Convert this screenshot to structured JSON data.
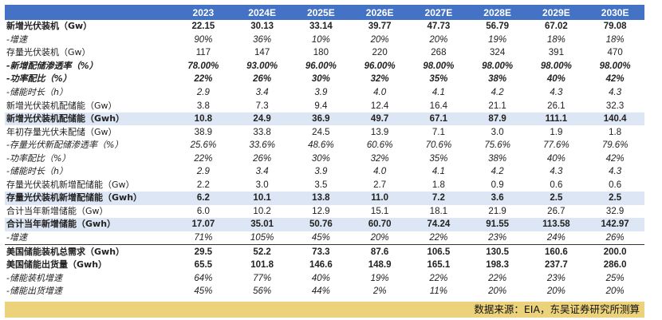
{
  "table": {
    "years": [
      "2023",
      "2024E",
      "2025E",
      "2026E",
      "2027E",
      "2028E",
      "2029E",
      "2030E"
    ],
    "rows": [
      {
        "label": "新增光伏装机（Gw）",
        "values": [
          "22.15",
          "30.13",
          "33.14",
          "39.77",
          "47.73",
          "56.79",
          "67.02",
          "79.08"
        ],
        "style": "bold"
      },
      {
        "label": "-增速",
        "values": [
          "90%",
          "36%",
          "10%",
          "20%",
          "20%",
          "19%",
          "18%",
          "18%"
        ],
        "style": "italic"
      },
      {
        "label": "存量光伏装机（Gw）",
        "values": [
          "117",
          "147",
          "180",
          "220",
          "268",
          "324",
          "391",
          "470"
        ],
        "style": "normal"
      },
      {
        "label": "-新增配储渗透率（%）",
        "values": [
          "78.00%",
          "93.00%",
          "96.00%",
          "96.00%",
          "98.00%",
          "98.00%",
          "98.00%",
          "98.00%"
        ],
        "style": "bold-italic"
      },
      {
        "label": "-功率配比（%）",
        "values": [
          "22%",
          "26%",
          "30%",
          "32%",
          "35%",
          "38%",
          "40%",
          "42%"
        ],
        "style": "bold-italic"
      },
      {
        "label": "-储能时长（h）",
        "values": [
          "2.9",
          "3.4",
          "3.9",
          "4.0",
          "4.1",
          "4.2",
          "4.3",
          "4.3"
        ],
        "style": "italic"
      },
      {
        "label": "新增光伏装机配储能（Gw）",
        "values": [
          "3.8",
          "7.3",
          "9.4",
          "12.4",
          "16.4",
          "21.1",
          "26.1",
          "32.3"
        ],
        "style": "normal"
      },
      {
        "label": "新增光伏装机配储能（Gwh）",
        "values": [
          "10.8",
          "24.9",
          "36.9",
          "49.7",
          "67.1",
          "87.9",
          "111.1",
          "140.4"
        ],
        "style": "bold-band"
      },
      {
        "label": "年初存量光伏未配储（Gw）",
        "values": [
          "38.9",
          "33.8",
          "24.5",
          "13.9",
          "7.1",
          "3.0",
          "1.9",
          "1.8"
        ],
        "style": "normal"
      },
      {
        "label": "-存量光伏新配储渗透率（%）",
        "values": [
          "25.6%",
          "33.6%",
          "48.6%",
          "60.6%",
          "70.6%",
          "75.6%",
          "77.6%",
          "79.6%"
        ],
        "style": "italic"
      },
      {
        "label": "-功率配比（%）",
        "values": [
          "22%",
          "26%",
          "30%",
          "32%",
          "35%",
          "38%",
          "40%",
          "42%"
        ],
        "style": "italic"
      },
      {
        "label": "-储能时长（h）",
        "values": [
          "2.9",
          "3.4",
          "3.9",
          "4.0",
          "4.1",
          "4.2",
          "4.3",
          "4.3"
        ],
        "style": "italic"
      },
      {
        "label": "存量光伏装机新增配储能（Gw）",
        "values": [
          "2.2",
          "3.0",
          "3.5",
          "2.7",
          "1.8",
          "0.9",
          "0.6",
          "0.6"
        ],
        "style": "normal"
      },
      {
        "label": "存量光伏装机新增配储能（Gwh）",
        "values": [
          "6.2",
          "10.1",
          "13.8",
          "11.0",
          "7.2",
          "3.6",
          "2.5",
          "2.5"
        ],
        "style": "bold-band"
      },
      {
        "label": "合计当年新增储能（Gw）",
        "values": [
          "6.0",
          "10.2",
          "12.9",
          "15.1",
          "18.1",
          "21.9",
          "26.7",
          "32.9"
        ],
        "style": "normal"
      },
      {
        "label": "合计当年新增储能（Gwh）",
        "values": [
          "17.07",
          "35.01",
          "50.76",
          "60.70",
          "74.24",
          "91.55",
          "113.58",
          "142.97"
        ],
        "style": "bold-band"
      },
      {
        "label": "-增速",
        "values": [
          "71%",
          "105%",
          "45%",
          "20%",
          "22%",
          "23%",
          "24%",
          "26%"
        ],
        "style": "italic"
      },
      {
        "label": "美国储能装机总需求（Gwh）",
        "values": [
          "29.5",
          "52.2",
          "73.3",
          "87.6",
          "106.5",
          "130.5",
          "160.6",
          "200.0"
        ],
        "style": "bold-top"
      },
      {
        "label": "美国储能出货量（Gwh）",
        "values": [
          "65.5",
          "101.8",
          "146.6",
          "148.9",
          "165.1",
          "198.3",
          "237.7",
          "286.0"
        ],
        "style": "bold-red"
      },
      {
        "label": "-储能装机增速",
        "values": [
          "64%",
          "77%",
          "40%",
          "19%",
          "22%",
          "22%",
          "23%",
          "25%"
        ],
        "style": "italic"
      },
      {
        "label": "-储能出货增速",
        "values": [
          "45%",
          "56%",
          "44%",
          "2%",
          "11%",
          "20%",
          "20%",
          "20%"
        ],
        "style": "italic"
      }
    ]
  },
  "footer": {
    "source": "数据来源：EIA，东吴证券研究所测算"
  },
  "colors": {
    "header_bg": "#4472c4",
    "band_bg": "#dde6f4",
    "footer_bg": "#ecd27a",
    "red_text": "#c0392b"
  }
}
